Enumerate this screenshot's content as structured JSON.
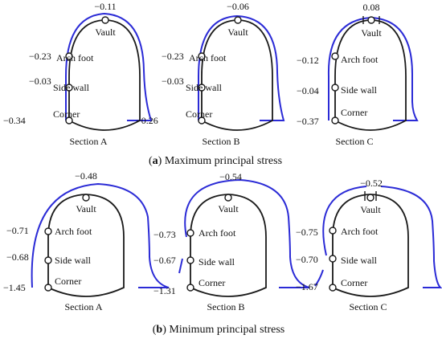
{
  "colors": {
    "tunnel": "#1a1a1a",
    "stress_curve": "#2b2bd6"
  },
  "rows": [
    {
      "caption_letter": "a",
      "caption_text": "Maximum principal stress",
      "sections": [
        {
          "name": "Section A",
          "vault": "−0.11",
          "arch_foot": "−0.23",
          "side_wall": "−0.03",
          "corner": "−0.34"
        },
        {
          "name": "Section B",
          "vault": "−0.06",
          "arch_foot": "−0.23",
          "side_wall": "−0.03",
          "corner": "−0.26"
        },
        {
          "name": "Section C",
          "vault": "0.08",
          "arch_foot": "−0.12",
          "side_wall": "−0.04",
          "corner": "−0.37"
        }
      ]
    },
    {
      "caption_letter": "b",
      "caption_text": "Minimum principal stress",
      "sections": [
        {
          "name": "Section A",
          "vault": "−0.48",
          "arch_foot": "−0.71",
          "side_wall": "−0.68",
          "corner": "−1.45"
        },
        {
          "name": "Section B",
          "vault": "−0.54",
          "arch_foot": "−0.73",
          "side_wall": "−0.67",
          "corner": "−1.31"
        },
        {
          "name": "Section C",
          "vault": "−0.52",
          "arch_foot": "−0.75",
          "side_wall": "−0.70",
          "corner": "−1.67"
        }
      ]
    }
  ],
  "point_labels": {
    "vault": "Vault",
    "arch_foot": "Arch foot",
    "side_wall": "Side wall",
    "corner": "Corner"
  },
  "caption_parens": {
    "open": "(",
    "close": ")"
  }
}
